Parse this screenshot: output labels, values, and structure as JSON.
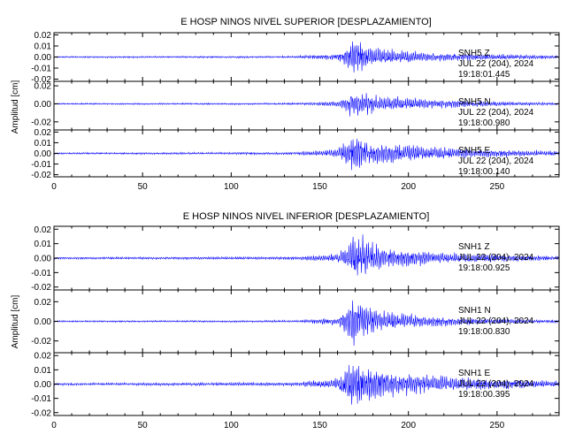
{
  "colors": {
    "trace": "#0000ff",
    "axis": "#000000"
  },
  "chart_data": [
    {
      "type": "line",
      "title": "E HOSP NINOS NIVEL SUPERIOR [DESPLAZAMIENTO]",
      "ylabel": "Amplitud [cm]",
      "xlabel": "",
      "xlim": [
        0,
        285
      ],
      "xticks": [
        "0",
        "50",
        "100",
        "150",
        "200",
        "250"
      ],
      "grid": false,
      "panels": [
        {
          "station": "SNH5",
          "component": "Z",
          "date": "JUL 22 (204), 2024",
          "time": "19:18:01.445",
          "ylim": [
            -0.022,
            0.022
          ],
          "yticks": [
            "0.02",
            "0.01",
            "0.00",
            "-0.01",
            "-0.02"
          ],
          "envelope": {
            "t": [
              0,
              135,
              160,
              165,
              168,
              172,
              180,
              195,
              215,
              240,
              265,
              285
            ],
            "a": [
              0.0007,
              0.0009,
              0.003,
              0.007,
              0.015,
              0.016,
              0.009,
              0.006,
              0.004,
              0.003,
              0.002,
              0.0015
            ]
          },
          "seed": 11
        },
        {
          "station": "SNH5",
          "component": "N",
          "date": "JUL 22 (204), 2024",
          "time": "19:18:00.980",
          "ylim": [
            -0.029,
            0.025
          ],
          "yticks": [
            "0.02",
            "0.00",
            "-0.02"
          ],
          "envelope": {
            "t": [
              0,
              135,
              160,
              165,
              168,
              172,
              180,
              195,
              215,
              240,
              265,
              285
            ],
            "a": [
              0.0008,
              0.001,
              0.003,
              0.008,
              0.015,
              0.014,
              0.01,
              0.007,
              0.005,
              0.003,
              0.002,
              0.0015
            ]
          },
          "seed": 23
        },
        {
          "station": "SNH5",
          "component": "E",
          "date": "JUL 22 (204), 2024",
          "time": "19:18:00.140",
          "ylim": [
            -0.022,
            0.022
          ],
          "yticks": [
            "0.02",
            "0.01",
            "0.00",
            "-0.01",
            "-0.02"
          ],
          "envelope": {
            "t": [
              0,
              135,
              160,
              165,
              168,
              172,
              180,
              195,
              215,
              240,
              265,
              285
            ],
            "a": [
              0.0008,
              0.0012,
              0.004,
              0.012,
              0.016,
              0.015,
              0.011,
              0.008,
              0.006,
              0.004,
              0.003,
              0.002
            ]
          },
          "seed": 37
        }
      ]
    },
    {
      "type": "line",
      "title": "E HOSP NINOS NIVEL INFERIOR [DESPLAZAMIENTO]",
      "ylabel": "Amplitud [cm]",
      "xlabel": "",
      "xlim": [
        0,
        285
      ],
      "xticks": [
        "0",
        "50",
        "100",
        "150",
        "200",
        "250"
      ],
      "grid": false,
      "panels": [
        {
          "station": "SNH1",
          "component": "Z",
          "date": "JUL 22 (204), 2024",
          "time": "19:18:00.925",
          "ylim": [
            -0.022,
            0.022
          ],
          "yticks": [
            "0.02",
            "0.01",
            "0.00",
            "-0.01",
            "-0.02"
          ],
          "envelope": {
            "t": [
              0,
              135,
              160,
              165,
              168,
              172,
              180,
              195,
              215,
              240,
              265,
              285
            ],
            "a": [
              0.0007,
              0.001,
              0.003,
              0.008,
              0.016,
              0.017,
              0.01,
              0.006,
              0.004,
              0.003,
              0.002,
              0.0015
            ]
          },
          "seed": 51
        },
        {
          "station": "SNH1",
          "component": "N",
          "date": "JUL 22 (204), 2024",
          "time": "19:18:00.830",
          "ylim": [
            -0.032,
            0.032
          ],
          "yticks": [
            "0.02",
            "0.00",
            "-0.02"
          ],
          "envelope": {
            "t": [
              0,
              135,
              160,
              165,
              168,
              172,
              180,
              195,
              215,
              240,
              265,
              285
            ],
            "a": [
              0.0008,
              0.001,
              0.004,
              0.012,
              0.024,
              0.022,
              0.014,
              0.008,
              0.005,
              0.003,
              0.002,
              0.0015
            ]
          },
          "seed": 67
        },
        {
          "station": "SNH1",
          "component": "E",
          "date": "JUL 22 (204), 2024",
          "time": "19:18:00.395",
          "ylim": [
            -0.022,
            0.022
          ],
          "yticks": [
            "0.02",
            "0.01",
            "0.00",
            "-0.01",
            "-0.02"
          ],
          "envelope": {
            "t": [
              0,
              135,
              160,
              165,
              168,
              172,
              180,
              195,
              215,
              240,
              265,
              285
            ],
            "a": [
              0.0008,
              0.0012,
              0.004,
              0.012,
              0.017,
              0.016,
              0.011,
              0.008,
              0.006,
              0.004,
              0.003,
              0.002
            ]
          },
          "seed": 83
        }
      ]
    }
  ]
}
